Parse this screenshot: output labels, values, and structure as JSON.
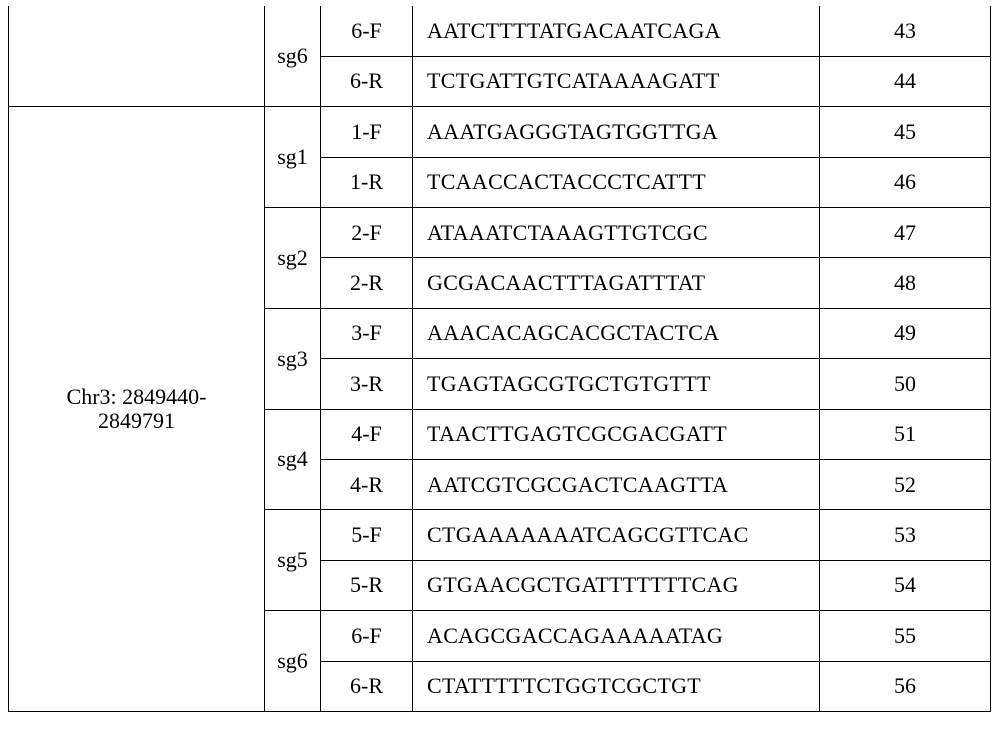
{
  "table": {
    "groups": [
      {
        "region_lines": [],
        "sgrnas": [
          {
            "sg": "sg6",
            "primers": [
              {
                "name": "6-F",
                "sequence": "AATCTTTTATGACAATCAGA",
                "seq_id": "43"
              },
              {
                "name": "6-R",
                "sequence": "TCTGATTGTCATAAAAGATT",
                "seq_id": "44"
              }
            ]
          }
        ]
      },
      {
        "region_lines": [
          "Chr3: 2849440-",
          "2849791"
        ],
        "sgrnas": [
          {
            "sg": "sg1",
            "primers": [
              {
                "name": "1-F",
                "sequence": "AAATGAGGGTAGTGGTTGA",
                "seq_id": "45"
              },
              {
                "name": "1-R",
                "sequence": "TCAACCACTACCCTCATTT",
                "seq_id": "46"
              }
            ]
          },
          {
            "sg": "sg2",
            "primers": [
              {
                "name": "2-F",
                "sequence": "ATAAATCTAAAGTTGTCGC",
                "seq_id": "47"
              },
              {
                "name": "2-R",
                "sequence": "GCGACAACTTTAGATTTAT",
                "seq_id": "48"
              }
            ]
          },
          {
            "sg": "sg3",
            "primers": [
              {
                "name": "3-F",
                "sequence": "AAACACAGCACGCTACTCA",
                "seq_id": "49"
              },
              {
                "name": "3-R",
                "sequence": "TGAGTAGCGTGCTGTGTTT",
                "seq_id": "50"
              }
            ]
          },
          {
            "sg": "sg4",
            "primers": [
              {
                "name": "4-F",
                "sequence": "TAACTTGAGTCGCGACGATT",
                "seq_id": "51"
              },
              {
                "name": "4-R",
                "sequence": "AATCGTCGCGACTCAAGTTA",
                "seq_id": "52"
              }
            ]
          },
          {
            "sg": "sg5",
            "primers": [
              {
                "name": "5-F",
                "sequence": "CTGAAAAAAATCAGCGTTCAC",
                "seq_id": "53"
              },
              {
                "name": "5-R",
                "sequence": "GTGAACGCTGATTTTTTTCAG",
                "seq_id": "54"
              }
            ]
          },
          {
            "sg": "sg6",
            "primers": [
              {
                "name": "6-F",
                "sequence": "ACAGCGACCAGAAAAATAG",
                "seq_id": "55"
              },
              {
                "name": "6-R",
                "sequence": "CTATTTTTCTGGTCGCTGT",
                "seq_id": "56"
              }
            ]
          }
        ]
      }
    ]
  }
}
